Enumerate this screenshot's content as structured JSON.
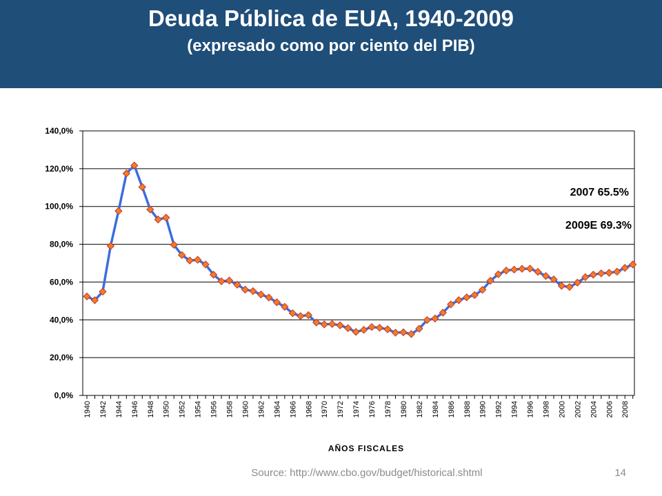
{
  "slide": {
    "title": "Deuda Pública de EUA, 1940-2009",
    "subtitle": "(expresado como por ciento del PIB)",
    "source": "Source: http://www.cbo.gov/budget/historical.shtml",
    "page_number": "14"
  },
  "colors": {
    "header_bg": "#1f4e79",
    "line": "#3b6de0",
    "marker": "#f07c2a",
    "marker_edge": "#c0392b",
    "text": "#000000"
  },
  "chart_data": {
    "type": "line",
    "xlabel": "AÑOS FISCALES",
    "ylabel": "",
    "ylim": [
      0,
      140
    ],
    "yticks": [
      "0,0%",
      "20,0%",
      "40,0%",
      "60,0%",
      "80,0%",
      "100,0%",
      "120,0%",
      "140,0%"
    ],
    "xticks": [
      "1940",
      "1942",
      "1944",
      "1946",
      "1948",
      "1950",
      "1952",
      "1954",
      "1956",
      "1958",
      "1960",
      "1962",
      "1964",
      "1966",
      "1968",
      "1970",
      "1972",
      "1974",
      "1976",
      "1978",
      "1980",
      "1982",
      "1984",
      "1986",
      "1988",
      "1990",
      "1992",
      "1994",
      "1996",
      "1998",
      "2000",
      "2002",
      "2004",
      "2006",
      "2008"
    ],
    "grid": true,
    "annotations": [
      "2007 65.5%",
      "2009E 69.3%"
    ],
    "series": [
      {
        "x": [
          1940,
          1941,
          1942,
          1943,
          1944,
          1945,
          1946,
          1947,
          1948,
          1949,
          1950,
          1951,
          1952,
          1953,
          1954,
          1955,
          1956,
          1957,
          1958,
          1959,
          1960,
          1961,
          1962,
          1963,
          1964,
          1965,
          1966,
          1967,
          1968,
          1969,
          1970,
          1971,
          1972,
          1973,
          1974,
          1975,
          1976,
          1977,
          1978,
          1979,
          1980,
          1981,
          1982,
          1983,
          1984,
          1985,
          1986,
          1987,
          1988,
          1989,
          1990,
          1991,
          1992,
          1993,
          1994,
          1995,
          1996,
          1997,
          1998,
          1999,
          2000,
          2001,
          2002,
          2003,
          2004,
          2005,
          2006,
          2007,
          2008,
          2009
        ],
        "values": [
          52.4,
          50.4,
          54.9,
          79.1,
          97.6,
          117.5,
          121.7,
          110.3,
          98.4,
          93.1,
          94.1,
          79.7,
          74.3,
          71.4,
          71.8,
          69.3,
          63.9,
          60.4,
          60.8,
          58.6,
          56.0,
          55.2,
          53.4,
          51.8,
          49.3,
          46.9,
          43.5,
          42.0,
          42.5,
          38.6,
          37.6,
          37.8,
          37.1,
          35.6,
          33.6,
          34.7,
          36.2,
          35.8,
          35.0,
          33.2,
          33.4,
          32.5,
          35.3,
          39.9,
          40.7,
          43.8,
          48.2,
          50.4,
          51.9,
          53.1,
          55.9,
          60.7,
          64.1,
          66.1,
          66.6,
          67.0,
          67.1,
          65.4,
          63.2,
          61.4,
          58.0,
          57.4,
          59.7,
          62.6,
          63.9,
          64.6,
          64.9,
          65.5,
          67.5,
          69.3
        ]
      }
    ]
  }
}
